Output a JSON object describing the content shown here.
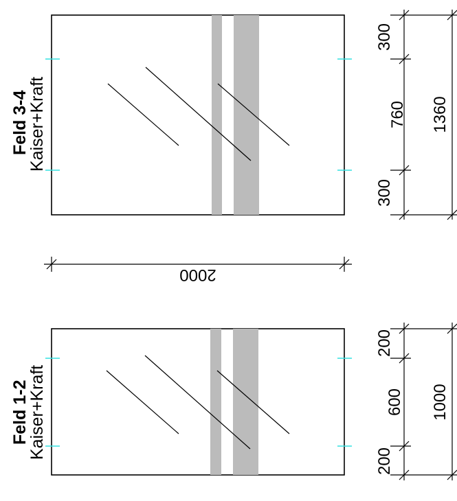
{
  "panels": [
    {
      "title": "Feld 3-4",
      "subtitle": "Kaiser+Kraft",
      "dims": [
        "300",
        "760",
        "300"
      ],
      "total": "1360"
    },
    {
      "title": "Feld 1-2",
      "subtitle": "Kaiser+Kraft",
      "dims": [
        "200",
        "600",
        "200"
      ],
      "total": "1000"
    }
  ],
  "width_dim": "2000",
  "colors": {
    "line": "#000000",
    "stripe": "#bbbbbb",
    "tick": "#33e0e0"
  }
}
